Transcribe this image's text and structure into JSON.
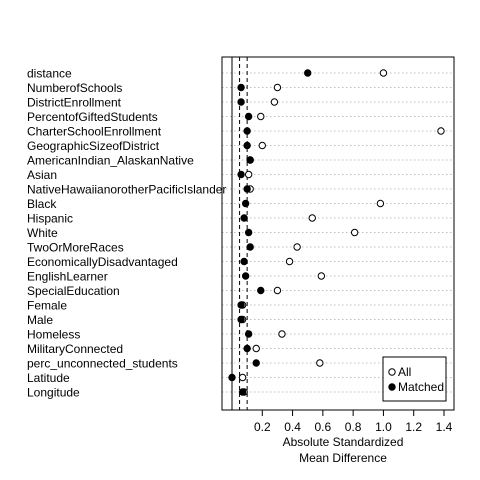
{
  "chart_data": {
    "type": "scatter",
    "xlabel_lines": [
      "Absolute Standardized",
      "Mean Difference"
    ],
    "x_ticks": [
      "0.2",
      "0.4",
      "0.6",
      "0.8",
      "1.0",
      "1.2",
      "1.4"
    ],
    "xlim": [
      0.0,
      1.42
    ],
    "reference_lines": {
      "solid": 0.0,
      "dashed": [
        0.05,
        0.1
      ]
    },
    "grid": "horizontal-dotted",
    "legend_position": "bottom-right",
    "variables": [
      "distance",
      "NumberofSchools",
      "DistrictEnrollment",
      "PercentofGiftedStudents",
      "CharterSchoolEnrollment",
      "GeographicSizeofDistrict",
      "AmericanIndian_AlaskanNative",
      "Asian",
      "NativeHawaiianorotherPacificIslander",
      "Black",
      "Hispanic",
      "White",
      "TwoOrMoreRaces",
      "EconomicallyDisadvantaged",
      "EnglishLearner",
      "SpecialEducation",
      "Female",
      "Male",
      "Homeless",
      "MilitaryConnected",
      "perc_unconnected_students",
      "Latitude",
      "Longitude"
    ],
    "series": [
      {
        "name": "All",
        "marker": "open-circle",
        "values": [
          1.0,
          0.3,
          0.28,
          0.19,
          1.38,
          0.2,
          0.12,
          0.11,
          0.12,
          0.98,
          0.53,
          0.81,
          0.43,
          0.38,
          0.59,
          0.3,
          0.07,
          0.07,
          0.33,
          0.16,
          0.58,
          0.07,
          0.08
        ]
      },
      {
        "name": "Matched",
        "marker": "filled-circle",
        "values": [
          0.5,
          0.06,
          0.06,
          0.11,
          0.1,
          0.1,
          0.12,
          0.06,
          0.1,
          0.09,
          0.08,
          0.11,
          0.12,
          0.08,
          0.09,
          0.19,
          0.06,
          0.06,
          0.11,
          0.1,
          0.16,
          0.0,
          0.07
        ]
      }
    ]
  },
  "colors": {
    "axis": "#000000",
    "grid": "#bfbfbf",
    "point": "#000000",
    "background": "#ffffff"
  }
}
